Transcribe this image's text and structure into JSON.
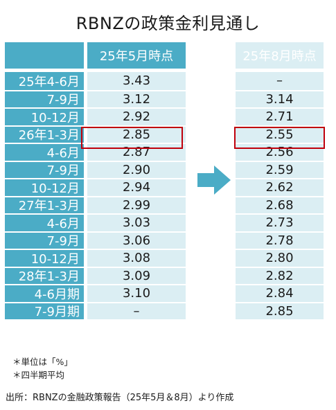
{
  "title": "RBNZの政策金利見通し",
  "chart_data": {
    "type": "table",
    "columns": [
      "25年5月時点",
      "25年8月時点"
    ],
    "rows": [
      {
        "period": "25年4-6月",
        "may": "3.43",
        "aug": "–"
      },
      {
        "period": "7-9月",
        "may": "3.12",
        "aug": "3.14"
      },
      {
        "period": "10-12月",
        "may": "2.92",
        "aug": "2.71"
      },
      {
        "period": "26年1-3月",
        "may": "2.85",
        "aug": "2.55",
        "highlight": true
      },
      {
        "period": "4-6月",
        "may": "2.87",
        "aug": "2.56"
      },
      {
        "period": "7-9月",
        "may": "2.90",
        "aug": "2.59"
      },
      {
        "period": "10-12月",
        "may": "2.94",
        "aug": "2.62"
      },
      {
        "period": "27年1-3月",
        "may": "2.99",
        "aug": "2.68"
      },
      {
        "period": "4-6月",
        "may": "3.03",
        "aug": "2.73"
      },
      {
        "period": "7-9月",
        "may": "3.06",
        "aug": "2.78"
      },
      {
        "period": "10-12月",
        "may": "3.08",
        "aug": "2.80"
      },
      {
        "period": "28年1-3月",
        "may": "3.09",
        "aug": "2.82"
      },
      {
        "period": "4-6月期",
        "may": "3.10",
        "aug": "2.84"
      },
      {
        "period": "7-9月期",
        "may": "–",
        "aug": "2.85"
      }
    ]
  },
  "notes": [
    "＊単位は「%」",
    "＊四半期平均"
  ],
  "source": "出所：RBNZの金融政策報告（25年5月＆8月）より作成",
  "colors": {
    "header": "#4bacc6",
    "cell": "#dbeef3",
    "highlight": "#c0000b",
    "arrow": "#4bacc6"
  }
}
